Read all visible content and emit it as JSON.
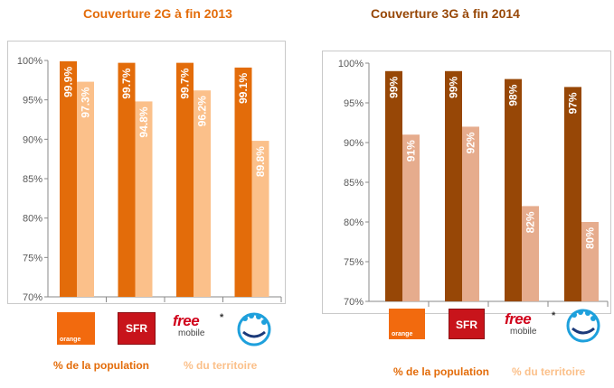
{
  "charts": [
    {
      "title": "Couverture 2G à fin 2013",
      "title_color": "#e36c0a",
      "legend": [
        {
          "label": "% de la population",
          "color": "#e36c0a"
        },
        {
          "label": "% du territoire",
          "color": "#fbc08a"
        }
      ],
      "operators": [
        {
          "name": "Orange",
          "logo_text": "orange"
        },
        {
          "name": "SFR",
          "logo_text": "SFR"
        },
        {
          "name": "Free Mobile",
          "logo_text": "free",
          "logo_subtext": "mobile",
          "asterisk": "*"
        },
        {
          "name": "Bouygues Telecom",
          "logo_text": ""
        }
      ]
    },
    {
      "title": "Couverture 3G à fin 2014",
      "title_color": "#974706",
      "legend": [
        {
          "label": "% de la population",
          "color": "#e36c0a"
        },
        {
          "label": "% du territoire",
          "color": "#fbc08a"
        }
      ],
      "operators": [
        {
          "name": "Orange",
          "logo_text": "orange"
        },
        {
          "name": "SFR",
          "logo_text": "SFR"
        },
        {
          "name": "Free Mobile",
          "logo_text": "free",
          "logo_subtext": "mobile",
          "asterisk": "*"
        },
        {
          "name": "Bouygues Telecom",
          "logo_text": ""
        }
      ]
    }
  ],
  "chart_data": [
    {
      "type": "bar",
      "title": "Couverture 2G à fin 2013",
      "categories": [
        "Orange",
        "SFR",
        "Free Mobile",
        "Bouygues Telecom"
      ],
      "series": [
        {
          "name": "% de la population",
          "values": [
            99.9,
            99.7,
            99.7,
            99.1
          ],
          "labels": [
            "99.9%",
            "99.7%",
            "99.7%",
            "99.1%"
          ],
          "color": "#e36c0a"
        },
        {
          "name": "% du territoire",
          "values": [
            97.3,
            94.8,
            96.2,
            89.8
          ],
          "labels": [
            "97.3%",
            "94.8%",
            "96.2%",
            "89.8%"
          ],
          "color": "#fbc08a"
        }
      ],
      "ylim": [
        70,
        100
      ],
      "yticks": [
        "70%",
        "75%",
        "80%",
        "85%",
        "90%",
        "95%",
        "100%"
      ],
      "grid": false,
      "legend": "bottom"
    },
    {
      "type": "bar",
      "title": "Couverture 3G à fin 2014",
      "categories": [
        "Orange",
        "SFR",
        "Free Mobile",
        "Bouygues Telecom"
      ],
      "series": [
        {
          "name": "% de la population",
          "values": [
            99,
            99,
            98,
            97
          ],
          "labels": [
            "99%",
            "99%",
            "98%",
            "97%"
          ],
          "color": "#974706"
        },
        {
          "name": "% du territoire",
          "values": [
            91,
            92,
            82,
            80
          ],
          "labels": [
            "91%",
            "92%",
            "82%",
            "80%"
          ],
          "color": "#e6ac8d"
        }
      ],
      "ylim": [
        70,
        100
      ],
      "yticks": [
        "70%",
        "75%",
        "80%",
        "85%",
        "90%",
        "95%",
        "100%"
      ],
      "grid": false,
      "legend": "bottom"
    }
  ]
}
